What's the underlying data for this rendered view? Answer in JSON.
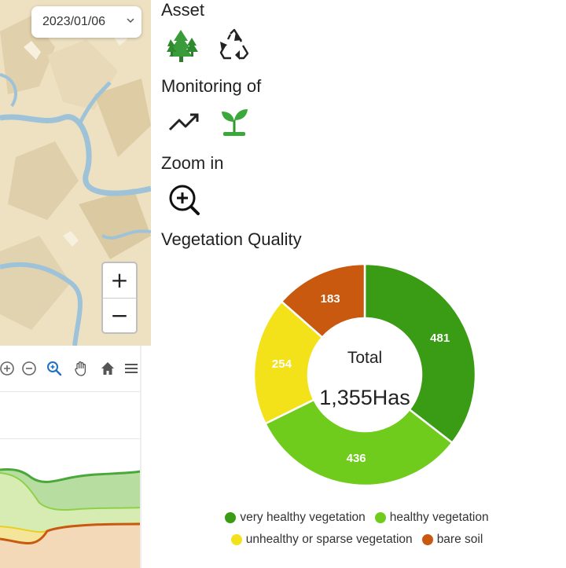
{
  "map": {
    "date": "2023/01/06",
    "zoom_in_label": "+",
    "zoom_out_label": "−"
  },
  "panel": {
    "asset_title": "Asset",
    "monitoring_title": "Monitoring of",
    "zoom_title": "Zoom in",
    "vegetation_title": "Vegetation Quality"
  },
  "chart_data": {
    "type": "pie",
    "title": "Vegetation Quality",
    "center_label": "Total",
    "center_value": "1,355Has",
    "categories": [
      "very healthy vegetation",
      "healthy vegetation",
      "unhealthy or sparse vegetation",
      "bare soil"
    ],
    "values": [
      481,
      436,
      254,
      183
    ],
    "value_labels": [
      "481",
      "436",
      "254",
      "183"
    ],
    "colors": [
      "#3a9b14",
      "#6fcc1c",
      "#f3e11a",
      "#c8590e"
    ],
    "donut": true,
    "legend_position": "bottom"
  }
}
